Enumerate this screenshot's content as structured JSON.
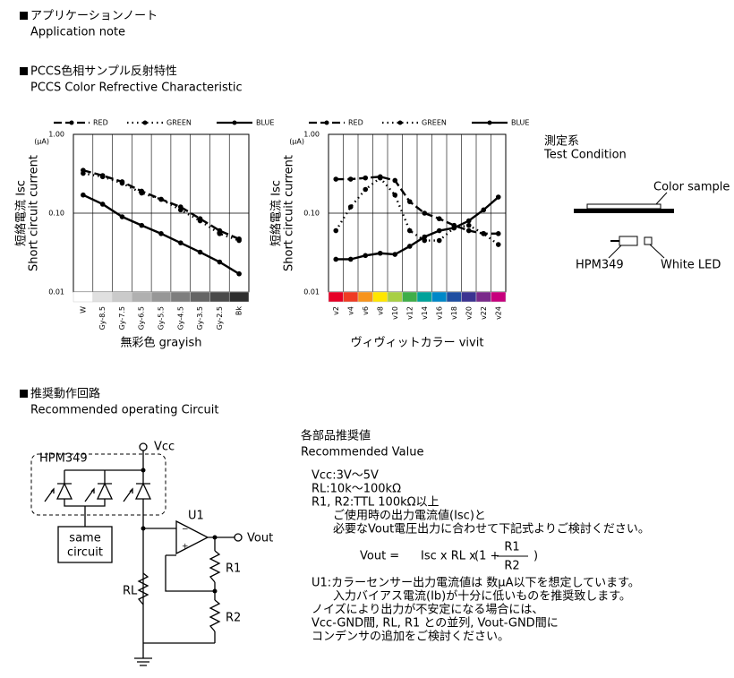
{
  "header": {
    "title_ja": "アプリケーションノート",
    "title_en": "Application note"
  },
  "section1": {
    "title_ja": "PCCS色相サンプル反射特性",
    "title_en": "PCCS Color Refrective Characteristic"
  },
  "chart_data": [
    {
      "type": "line",
      "unit": "(μA)",
      "ylabel": [
        "短絡電流 Isc",
        "Short circuit current"
      ],
      "xlabel": "無彩色 grayish",
      "categories": [
        "W",
        "Gy-8.5",
        "Gy-7.5",
        "Gy-6.5",
        "Gy-5.5",
        "Gy-4.5",
        "Gy-3.5",
        "Gy-2.5",
        "Bk"
      ],
      "series": [
        {
          "name": "RED",
          "color": "#000000",
          "dash": "dashed",
          "values": [
            0.35,
            0.3,
            0.25,
            0.19,
            0.15,
            0.12,
            0.085,
            0.06,
            0.047
          ]
        },
        {
          "name": "GREEN",
          "color": "#000000",
          "dash": "dotted",
          "values": [
            0.32,
            0.29,
            0.24,
            0.18,
            0.15,
            0.11,
            0.08,
            0.055,
            0.045
          ]
        },
        {
          "name": "BLUE",
          "color": "#000000",
          "dash": "solid",
          "values": [
            0.17,
            0.13,
            0.09,
            0.07,
            0.055,
            0.042,
            0.032,
            0.024,
            0.017
          ]
        }
      ],
      "ylim": [
        0.01,
        1
      ],
      "yticks": [
        {
          "value": 0.01,
          "label": "0.01"
        },
        {
          "value": 0.1,
          "label": "0.10"
        },
        {
          "value": 1,
          "label": "1.00"
        }
      ],
      "log_scale": true,
      "grid": true,
      "legend": "top"
    },
    {
      "type": "line",
      "unit": "(μA)",
      "ylabel": [
        "短絡電流 Isc",
        "Short circuit current"
      ],
      "xlabel": "ヴィヴィットカラー vivit",
      "categories": [
        "v2",
        "v4",
        "v6",
        "v8",
        "v10",
        "v12",
        "v14",
        "v16",
        "v18",
        "v20",
        "v22",
        "v24"
      ],
      "series": [
        {
          "name": "RED",
          "color": "#000000",
          "dash": "dashed",
          "values": [
            0.27,
            0.27,
            0.28,
            0.29,
            0.26,
            0.14,
            0.1,
            0.085,
            0.07,
            0.06,
            0.055,
            0.055
          ]
        },
        {
          "name": "GREEN",
          "color": "#000000",
          "dash": "dotted",
          "values": [
            0.06,
            0.12,
            0.2,
            0.28,
            0.17,
            0.06,
            0.045,
            0.045,
            0.065,
            0.07,
            0.055,
            0.04
          ]
        },
        {
          "name": "BLUE",
          "color": "#000000",
          "dash": "solid",
          "values": [
            0.026,
            0.026,
            0.029,
            0.031,
            0.03,
            0.038,
            0.05,
            0.06,
            0.065,
            0.08,
            0.11,
            0.16
          ]
        }
      ],
      "ylim": [
        0.01,
        1
      ],
      "yticks": [
        {
          "value": 0.01,
          "label": "0.01"
        },
        {
          "value": 0.1,
          "label": "0.10"
        },
        {
          "value": 1,
          "label": "1.00"
        }
      ],
      "log_scale": true,
      "grid": true,
      "legend": "top"
    }
  ],
  "test_condition": {
    "title_ja": "測定系",
    "title_en": "Test Condition",
    "color_sample": "Color sample",
    "sensor": "HPM349",
    "led": "White LED"
  },
  "section2": {
    "title_ja": "推奨動作回路",
    "title_en": "Recommended operating Circuit"
  },
  "circuit": {
    "module": "HPM349",
    "vcc": "Vcc",
    "opamp": "U1",
    "vout": "Vout",
    "box": [
      "same",
      "circuit"
    ],
    "r1": "R1",
    "rl": "RL",
    "r2": "R2",
    "minus": "−",
    "plus": "+"
  },
  "recommended": {
    "title_ja": "各部品推奨値",
    "title_en": "Recommended Value",
    "lines": [
      "Vcc:3V～5V",
      "RL:10k～100kΩ",
      "R1, R2:TTL 100kΩ以上",
      "ご使用時の出力電流値(Isc)と",
      "必要なVout電圧出力に合わせて下記式よりご検討ください。"
    ],
    "formula": {
      "lhs": "Vout =",
      "mid": "Isc x RL x",
      "open": "(1 +",
      "num": "R1",
      "den": "R2",
      "close": ")"
    },
    "notes": [
      "U1:カラーセンサー出力電流値は 数μA以下を想定しています。",
      "入力バイアス電流(Ib)が十分に低いものを推奨致します。",
      "ノイズにより出力が不安定になる場合には、",
      "Vcc-GND間, RL, R1 との並列, Vout-GND間に",
      "コンデンサの追加をご検討ください。"
    ]
  }
}
